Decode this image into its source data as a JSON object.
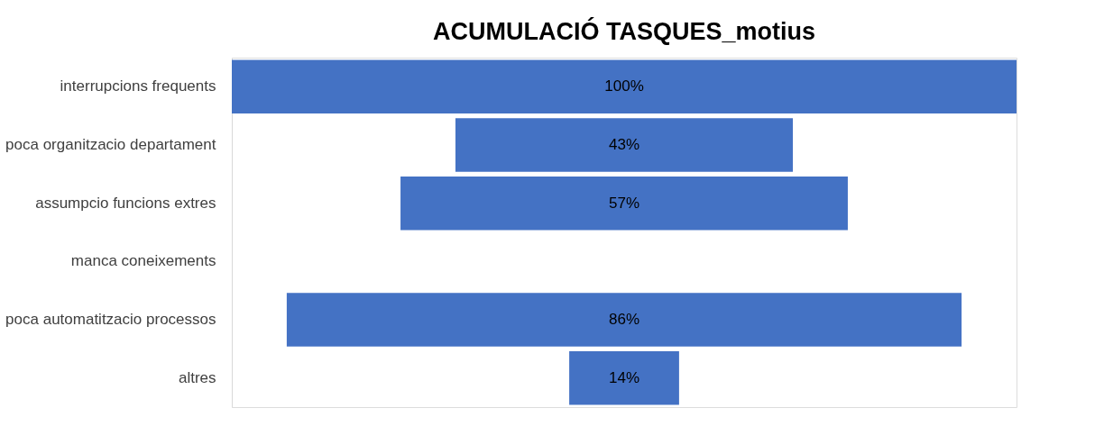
{
  "chart_data": {
    "type": "other",
    "title": "ACUMULACIÓ TASQUES_motius",
    "categories": [
      "interrupcions frequents",
      "poca organitzacio departament",
      "assumpcio funcions extres",
      "manca coneixements",
      "poca automatitzacio processos",
      "altres"
    ],
    "values": [
      100,
      43,
      57,
      null,
      86,
      14
    ],
    "value_labels": [
      "100%",
      "43%",
      "57%",
      null,
      "86%",
      "14%"
    ],
    "color": "#4472c4"
  }
}
